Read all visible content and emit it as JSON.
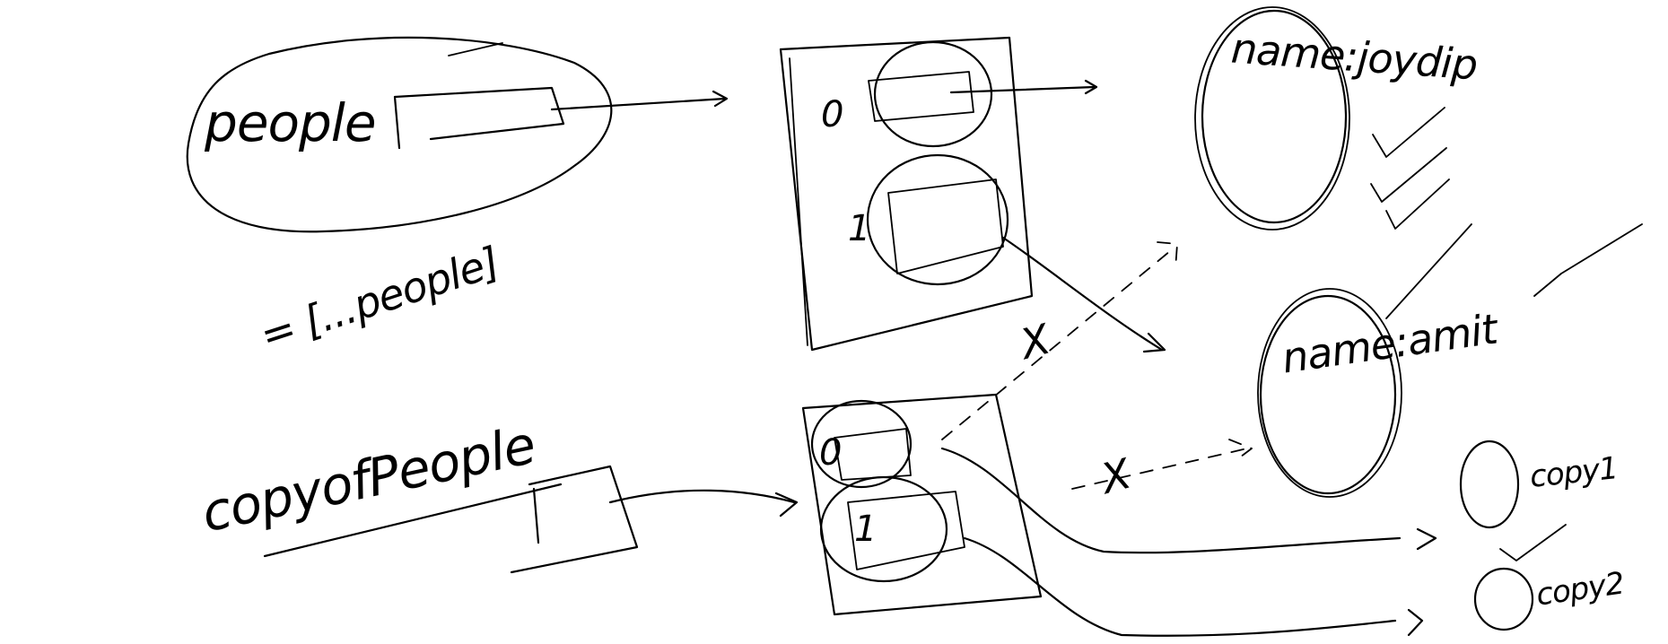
{
  "diagram": {
    "original_variable": "people",
    "spread_expression": "= [...people]",
    "copy_variable": "copyofPeople",
    "original_array_indices": [
      "0",
      "1"
    ],
    "copy_array_indices": [
      "0",
      "1"
    ],
    "objects": [
      {
        "text": "name:joydip"
      },
      {
        "text": "name:amit"
      }
    ],
    "copies": [
      {
        "text": "copy1"
      },
      {
        "text": "copy2"
      }
    ],
    "cancel_marks": [
      "X",
      "X"
    ]
  },
  "colors": {
    "ink": "#000000",
    "background": "#ffffff"
  }
}
